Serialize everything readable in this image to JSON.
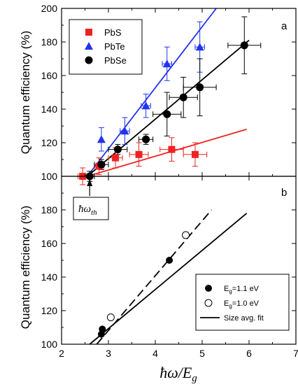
{
  "chart_data": [
    {
      "type": "scatter",
      "panel_label": "a",
      "ylabel": "Quantum efficiency (%)",
      "xlim": [
        2,
        7
      ],
      "ylim": [
        100,
        200
      ],
      "yticks": [
        "100",
        "120",
        "140",
        "160",
        "180",
        "200"
      ],
      "legend_position": "top-left",
      "colors": {
        "PbS": "#ee2222",
        "PbTe": "#2233ee",
        "PbSe": "#000000"
      },
      "series": [
        {
          "name": "PbS",
          "marker": "square",
          "points": [
            {
              "x": 2.45,
              "y": 100,
              "xerr": 0.1,
              "yerr": 5
            },
            {
              "x": 2.8,
              "y": 106,
              "xerr": 0.1,
              "yerr": 5
            },
            {
              "x": 3.15,
              "y": 111,
              "xerr": 0.15,
              "yerr": 6
            },
            {
              "x": 3.65,
              "y": 113,
              "xerr": 0.2,
              "yerr": 7
            },
            {
              "x": 4.35,
              "y": 116,
              "xerr": 0.25,
              "yerr": 7
            },
            {
              "x": 4.85,
              "y": 113,
              "xerr": 0.25,
              "yerr": 7
            }
          ],
          "fit": {
            "x": [
              2.55,
              5.95
            ],
            "y": [
              100,
              128
            ]
          }
        },
        {
          "name": "PbTe",
          "marker": "triangle",
          "points": [
            {
              "x": 2.85,
              "y": 122,
              "xerr": 0,
              "yerr": 7
            },
            {
              "x": 3.35,
              "y": 127,
              "xerr": 0.1,
              "yerr": 8
            },
            {
              "x": 3.8,
              "y": 142,
              "xerr": 0.1,
              "yerr": 7
            },
            {
              "x": 4.25,
              "y": 167,
              "xerr": 0.1,
              "yerr": 10
            },
            {
              "x": 4.95,
              "y": 177,
              "xerr": 0.1,
              "yerr": 15
            }
          ],
          "fit": {
            "x": [
              2.55,
              5.3
            ],
            "y": [
              100,
              200
            ]
          }
        },
        {
          "name": "PbSe",
          "marker": "circle",
          "points": [
            {
              "x": 2.6,
              "y": 100,
              "xerr": 0.1,
              "yerr": 3
            },
            {
              "x": 2.85,
              "y": 107,
              "xerr": 0.15,
              "yerr": 3
            },
            {
              "x": 3.2,
              "y": 116,
              "xerr": 0.2,
              "yerr": 3
            },
            {
              "x": 3.8,
              "y": 122,
              "xerr": 0.15,
              "yerr": 3
            },
            {
              "x": 4.25,
              "y": 137,
              "xerr": 0.3,
              "yerr": 13
            },
            {
              "x": 4.6,
              "y": 147,
              "xerr": 0.3,
              "yerr": 12
            },
            {
              "x": 4.95,
              "y": 153,
              "xerr": 0.35,
              "yerr": 17
            },
            {
              "x": 5.9,
              "y": 178,
              "xerr": 0.35,
              "yerr": 17
            }
          ],
          "fit": {
            "x": [
              2.55,
              6.0
            ],
            "y": [
              100,
              181
            ]
          }
        }
      ],
      "annotation": {
        "x": 2.6,
        "text_main": "ħω",
        "text_sub": "th"
      }
    },
    {
      "type": "scatter",
      "panel_label": "b",
      "ylabel": "Quantum efficiency (%)",
      "xlabel": "ħω/E",
      "xlabel_sub": "g",
      "xlim": [
        2,
        7
      ],
      "ylim": [
        100,
        200
      ],
      "xticks": [
        "2",
        "3",
        "4",
        "5",
        "6",
        "7"
      ],
      "yticks": [
        "100",
        "120",
        "140",
        "160",
        "180"
      ],
      "legend_position": "bottom-right",
      "series": [
        {
          "name": "E",
          "name_sub": "g",
          "name_suffix": "=1.1 eV",
          "marker": "filled-circle",
          "points": [
            {
              "x": 2.85,
              "y": 106
            },
            {
              "x": 2.87,
              "y": 109
            },
            {
              "x": 4.3,
              "y": 150
            }
          ]
        },
        {
          "name": "E",
          "name_sub": "g",
          "name_suffix": "=1.0 eV",
          "marker": "open-circle",
          "points": [
            {
              "x": 3.05,
              "y": 116
            },
            {
              "x": 4.65,
              "y": 165
            }
          ]
        },
        {
          "name": "Size avg. fit",
          "marker": "line",
          "line": {
            "x": [
              2.6,
              5.95
            ],
            "y": [
              100,
              178
            ]
          }
        }
      ],
      "dashed_line": {
        "x": [
          2.75,
          5.2
        ],
        "y": [
          100,
          180
        ]
      }
    }
  ]
}
